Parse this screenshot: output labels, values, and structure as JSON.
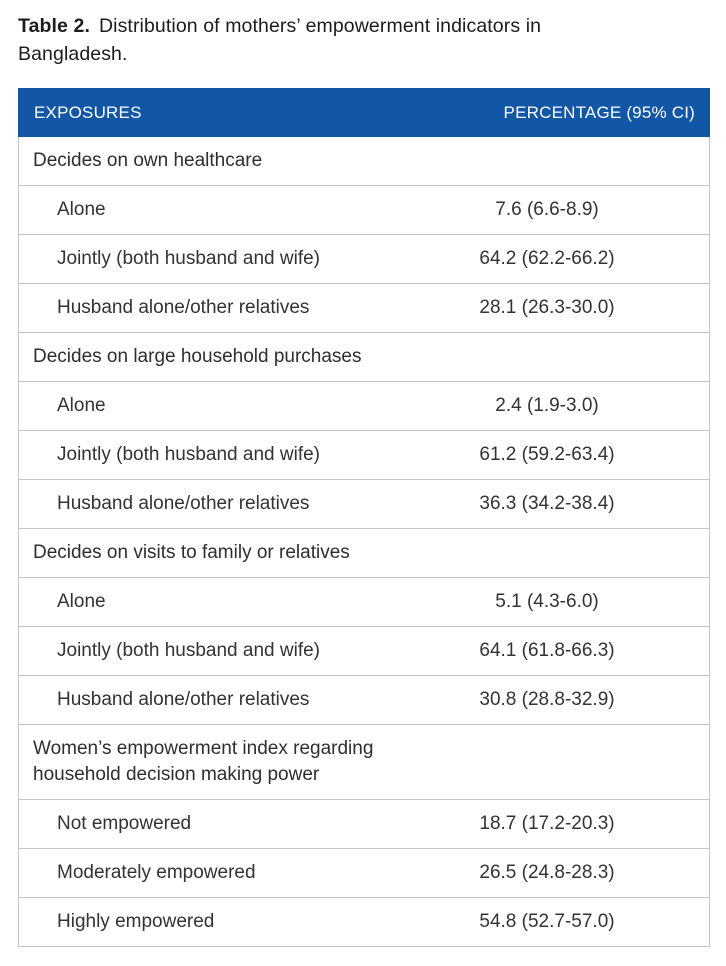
{
  "caption": {
    "label": "Table 2.",
    "text": "Distribution of mothers’ empowerment indicators in Bangladesh."
  },
  "table": {
    "header": {
      "col1": "EXPOSURES",
      "col2": "PERCENTAGE (95% CI)"
    },
    "groups": [
      {
        "header": "Decides on own healthcare",
        "rows": [
          {
            "label": "Alone",
            "value": "7.6 (6.6-8.9)"
          },
          {
            "label": "Jointly (both husband and wife)",
            "value": "64.2 (62.2-66.2)"
          },
          {
            "label": "Husband alone/other relatives",
            "value": "28.1 (26.3-30.0)"
          }
        ]
      },
      {
        "header": "Decides on large household purchases",
        "rows": [
          {
            "label": "Alone",
            "value": "2.4 (1.9-3.0)"
          },
          {
            "label": "Jointly (both husband and wife)",
            "value": "61.2 (59.2-63.4)"
          },
          {
            "label": "Husband alone/other relatives",
            "value": "36.3 (34.2-38.4)"
          }
        ]
      },
      {
        "header": "Decides on visits to family or relatives",
        "rows": [
          {
            "label": "Alone",
            "value": "5.1 (4.3-6.0)"
          },
          {
            "label": "Jointly (both husband and wife)",
            "value": "64.1 (61.8-66.3)"
          },
          {
            "label": "Husband alone/other relatives",
            "value": "30.8 (28.8-32.9)"
          }
        ]
      },
      {
        "header": "Women’s empowerment index regarding household decision making power",
        "rows": [
          {
            "label": "Not empowered",
            "value": "18.7 (17.2-20.3)"
          },
          {
            "label": "Moderately empowered",
            "value": "26.5 (24.8-28.3)"
          },
          {
            "label": "Highly empowered",
            "value": "54.8 (52.7-57.0)"
          }
        ]
      }
    ]
  },
  "colors": {
    "header_bg": "#1256A6",
    "header_text": "#FFFFFF",
    "row_border": "#C4C4C4",
    "body_text": "#333333",
    "background": "#FFFFFF"
  }
}
